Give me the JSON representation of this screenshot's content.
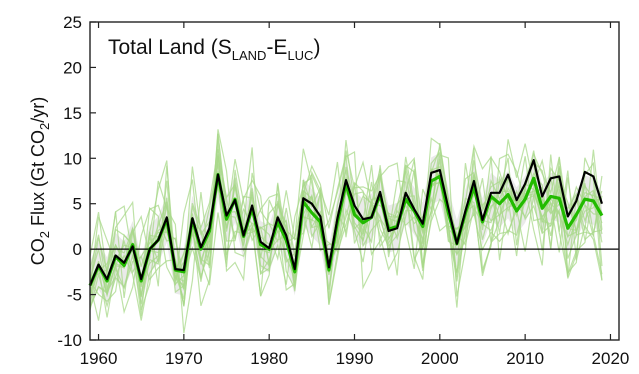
{
  "chart_data": {
    "type": "line",
    "title_parts": {
      "main": "Total Land (S",
      "sub1": "LAND",
      "mid": "-E",
      "sub2": "LUC",
      "end": ")"
    },
    "ylabel_parts": {
      "a": "CO",
      "sub1": "2",
      "b": " Flux (Gt CO",
      "sub2": "2",
      "c": "/yr)"
    },
    "xlim": [
      1959,
      2021
    ],
    "ylim": [
      -10,
      25
    ],
    "x_ticks": [
      1960,
      1970,
      1980,
      1990,
      2000,
      2010,
      2020
    ],
    "y_ticks": [
      -10,
      -5,
      0,
      5,
      10,
      15,
      20,
      25
    ],
    "x_tick_labels": [
      "1960",
      "1970",
      "1980",
      "1990",
      "2000",
      "2010",
      "2020"
    ],
    "y_tick_labels": [
      "-10",
      "-5",
      "0",
      "5",
      "10",
      "15",
      "20",
      "25"
    ],
    "zero_line": true,
    "colors": {
      "budget": "#000000",
      "mean": "#22bb00",
      "models": "#a8d88a",
      "spread": "#d9d9d9"
    },
    "x": [
      1959,
      1960,
      1961,
      1962,
      1963,
      1964,
      1965,
      1966,
      1967,
      1968,
      1969,
      1970,
      1971,
      1972,
      1973,
      1974,
      1975,
      1976,
      1977,
      1978,
      1979,
      1980,
      1981,
      1982,
      1983,
      1984,
      1985,
      1986,
      1987,
      1988,
      1989,
      1990,
      1991,
      1992,
      1993,
      1994,
      1995,
      1996,
      1997,
      1998,
      1999,
      2000,
      2001,
      2002,
      2003,
      2004,
      2005,
      2006,
      2007,
      2008,
      2009,
      2010,
      2011,
      2012,
      2013,
      2014,
      2015,
      2016,
      2017,
      2018,
      2019
    ],
    "series": [
      {
        "role": "budget",
        "values": [
          -4.0,
          -1.7,
          -3.3,
          -0.7,
          -1.5,
          0.3,
          -3.3,
          0.0,
          1.0,
          3.5,
          -2.2,
          -2.3,
          3.4,
          0.2,
          2.3,
          8.2,
          3.7,
          5.4,
          1.5,
          4.8,
          0.8,
          0.1,
          3.5,
          1.5,
          -2.2,
          5.6,
          5.0,
          3.6,
          -2.0,
          3.4,
          7.6,
          4.8,
          3.3,
          3.5,
          6.3,
          2.0,
          2.3,
          6.2,
          4.4,
          2.8,
          8.4,
          8.7,
          4.5,
          0.6,
          4.2,
          7.5,
          3.2,
          6.2,
          6.2,
          8.2,
          5.4,
          7.2,
          9.8,
          5.8,
          7.8,
          8.0,
          3.6,
          5.3,
          8.5,
          8.0,
          5.0
        ]
      },
      {
        "role": "mean",
        "values": [
          -4.0,
          -1.8,
          -3.5,
          -0.8,
          -1.8,
          0.5,
          -3.5,
          0.0,
          1.0,
          3.3,
          -2.3,
          -2.5,
          3.3,
          0.0,
          2.0,
          8.2,
          3.3,
          5.5,
          1.4,
          4.5,
          0.5,
          0.0,
          3.0,
          1.0,
          -2.5,
          5.2,
          4.0,
          3.0,
          -2.3,
          3.0,
          7.2,
          3.8,
          2.9,
          3.5,
          6.0,
          2.2,
          2.5,
          5.5,
          4.2,
          2.5,
          7.5,
          8.0,
          4.0,
          0.6,
          4.0,
          6.8,
          3.0,
          5.8,
          5.0,
          6.0,
          4.2,
          5.5,
          7.8,
          4.5,
          5.8,
          5.6,
          2.3,
          3.8,
          5.5,
          5.3,
          3.7
        ]
      }
    ]
  }
}
